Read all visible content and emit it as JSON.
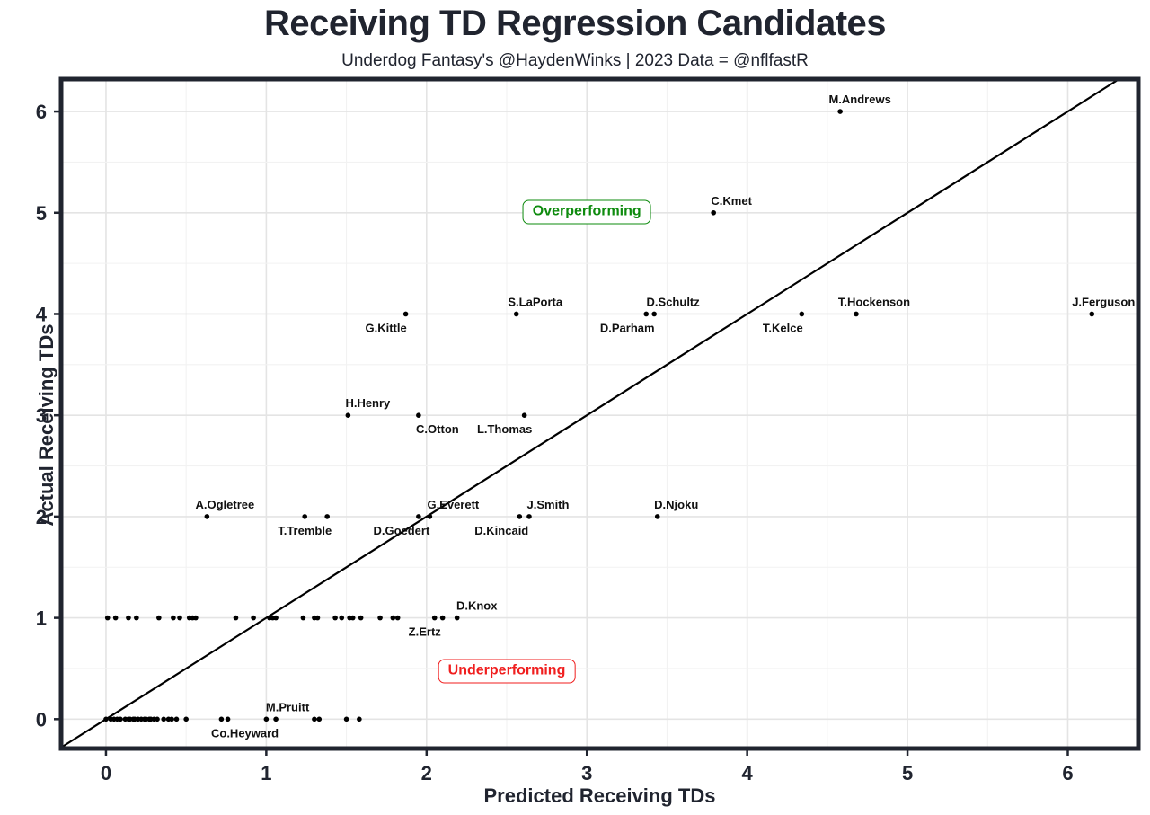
{
  "colors": {
    "dark": "#20242f",
    "point": "#000000",
    "grid_major": "#e4e4e4",
    "grid_minor": "#f2f2f2",
    "identity_line": "#000000",
    "overperforming": "#0e8b0e",
    "underperforming": "#f01e1e",
    "panel_bg": "#ffffff"
  },
  "chart_data": {
    "type": "scatter",
    "title": "Receiving TD Regression Candidates",
    "subtitle": "Underdog Fantasy's @HaydenWinks | 2023 Data = @nflfastR",
    "xlabel": "Predicted Receiving TDs",
    "ylabel": "Actual Receiving TDs",
    "xlim": [
      -0.28,
      6.44
    ],
    "ylim": [
      -0.29,
      6.32
    ],
    "x_ticks": [
      0,
      1,
      2,
      3,
      4,
      5,
      6
    ],
    "y_ticks": [
      0,
      1,
      2,
      3,
      4,
      5,
      6
    ],
    "grid": {
      "major_step": 1,
      "minor_step": 0.5,
      "grid_on": true
    },
    "identity_line": {
      "from": -0.28,
      "to": 6.32
    },
    "labeled_points": [
      {
        "name": "M.Andrews",
        "x": 4.58,
        "y": 6,
        "label_pos": "above",
        "label_dx": 22
      },
      {
        "name": "C.Kmet",
        "x": 3.79,
        "y": 5,
        "label_pos": "above",
        "label_dx": 20
      },
      {
        "name": "G.Kittle",
        "x": 1.87,
        "y": 4,
        "label_pos": "below",
        "label_dx": -22
      },
      {
        "name": "S.LaPorta",
        "x": 2.56,
        "y": 4,
        "label_pos": "above",
        "label_dx": 21
      },
      {
        "name": "D.Parham",
        "x": 3.37,
        "y": 4,
        "label_pos": "below",
        "label_dx": -21
      },
      {
        "name": "D.Schultz",
        "x": 3.42,
        "y": 4,
        "label_pos": "above",
        "label_dx": 21
      },
      {
        "name": "T.Kelce",
        "x": 4.34,
        "y": 4,
        "label_pos": "below",
        "label_dx": -21
      },
      {
        "name": "T.Hockenson",
        "x": 4.68,
        "y": 4,
        "label_pos": "above",
        "label_dx": 20
      },
      {
        "name": "J.Ferguson",
        "x": 6.15,
        "y": 4,
        "label_pos": "above",
        "label_dx": 13
      },
      {
        "name": "H.Henry",
        "x": 1.51,
        "y": 3,
        "label_pos": "above",
        "label_dx": 22
      },
      {
        "name": "C.Otton",
        "x": 1.95,
        "y": 3,
        "label_pos": "below",
        "label_dx": 21
      },
      {
        "name": "L.Thomas",
        "x": 2.61,
        "y": 3,
        "label_pos": "below",
        "label_dx": -22
      },
      {
        "name": "A.Ogletree",
        "x": 0.63,
        "y": 2,
        "label_pos": "above",
        "label_dx": 20
      },
      {
        "name": "T.Tremble",
        "x": 1.24,
        "y": 2,
        "label_pos": "below",
        "label_dx": 0
      },
      {
        "name": "D.Goedert",
        "x": 1.95,
        "y": 2,
        "label_pos": "below",
        "label_dx": -19
      },
      {
        "name": "G.Everett",
        "x": 2.02,
        "y": 2,
        "label_pos": "above",
        "label_dx": 26
      },
      {
        "name": "D.Kincaid",
        "x": 2.58,
        "y": 2,
        "label_pos": "below",
        "label_dx": -20
      },
      {
        "name": "J.Smith",
        "x": 2.64,
        "y": 2,
        "label_pos": "above",
        "label_dx": 21
      },
      {
        "name": "D.Njoku",
        "x": 3.44,
        "y": 2,
        "label_pos": "above",
        "label_dx": 21
      },
      {
        "name": "Z.Ertz",
        "x": 2.05,
        "y": 1,
        "label_pos": "below",
        "label_dx": -11
      },
      {
        "name": "D.Knox",
        "x": 2.19,
        "y": 1,
        "label_pos": "above",
        "label_dx": 22
      },
      {
        "name": "M.Pruitt",
        "x": 1.06,
        "y": 0,
        "label_pos": "above",
        "label_dx": 13
      },
      {
        "name": "Co.Heyward",
        "x": 0.76,
        "y": 0,
        "label_pos": "below",
        "label_dx": 19
      }
    ],
    "unlabeled_points": {
      "y2_x": [
        1.38
      ],
      "y1_x": [
        0.01,
        0.06,
        0.14,
        0.19,
        0.33,
        0.42,
        0.46,
        0.52,
        0.54,
        0.56,
        0.81,
        0.92,
        1.02,
        1.04,
        1.06,
        1.23,
        1.3,
        1.32,
        1.43,
        1.47,
        1.52,
        1.54,
        1.59,
        1.71,
        1.79,
        1.82,
        2.1
      ],
      "y0_x": [
        0.0,
        0.03,
        0.05,
        0.07,
        0.09,
        0.12,
        0.14,
        0.15,
        0.17,
        0.18,
        0.2,
        0.22,
        0.24,
        0.25,
        0.27,
        0.28,
        0.3,
        0.32,
        0.36,
        0.39,
        0.41,
        0.44,
        0.5,
        0.72,
        1.0,
        1.3,
        1.33,
        1.5,
        1.58
      ]
    },
    "annotations": [
      {
        "id": "overperforming",
        "text": "Overperforming",
        "x": 3.0,
        "y": 5.01,
        "color_key": "overperforming"
      },
      {
        "id": "underperforming",
        "text": "Underperforming",
        "x": 2.5,
        "y": 0.47,
        "color_key": "underperforming"
      }
    ]
  }
}
